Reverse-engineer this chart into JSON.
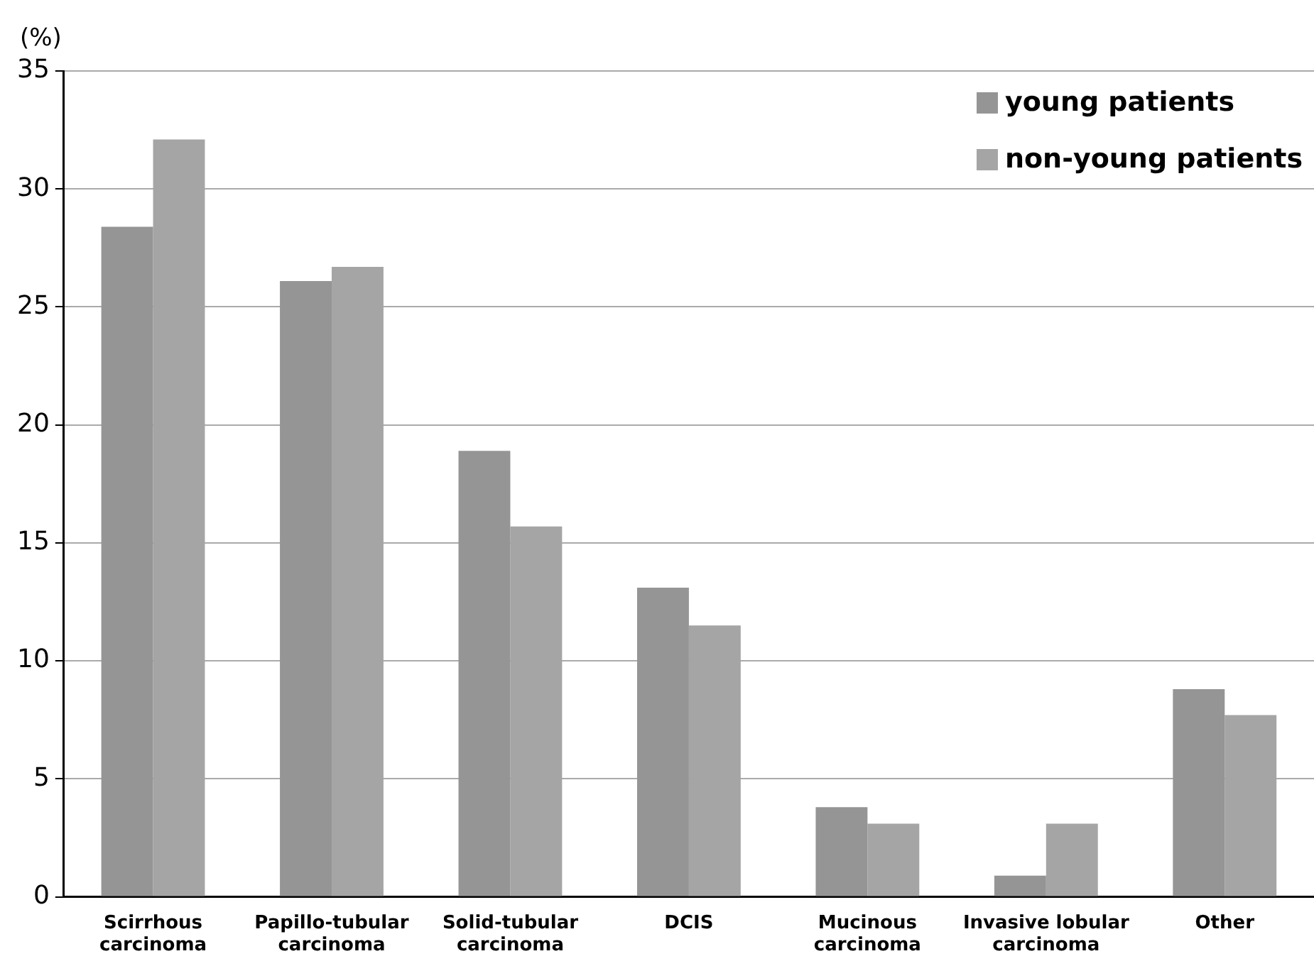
{
  "chart_data": {
    "type": "bar",
    "ylabel": "(%)",
    "categories": [
      "Scirrhous carcinoma",
      "Papillo-tubular carcinoma",
      "Solid-tubular carcinoma",
      "DCIS",
      "Mucinous carcinoma",
      "Invasive lobular carcinoma",
      "Other"
    ],
    "series": [
      {
        "name": "young patients",
        "color": "#959595",
        "values": [
          28.4,
          26.1,
          18.9,
          13.1,
          3.8,
          0.9,
          8.8
        ]
      },
      {
        "name": "non-young patients",
        "color": "#a5a5a5",
        "values": [
          32.1,
          26.7,
          15.7,
          11.5,
          3.1,
          3.1,
          7.7
        ]
      }
    ],
    "ylim": [
      0,
      35
    ],
    "yticks": [
      0,
      5,
      10,
      15,
      20,
      25,
      30,
      35
    ],
    "grid": "y",
    "legend": "top right"
  }
}
